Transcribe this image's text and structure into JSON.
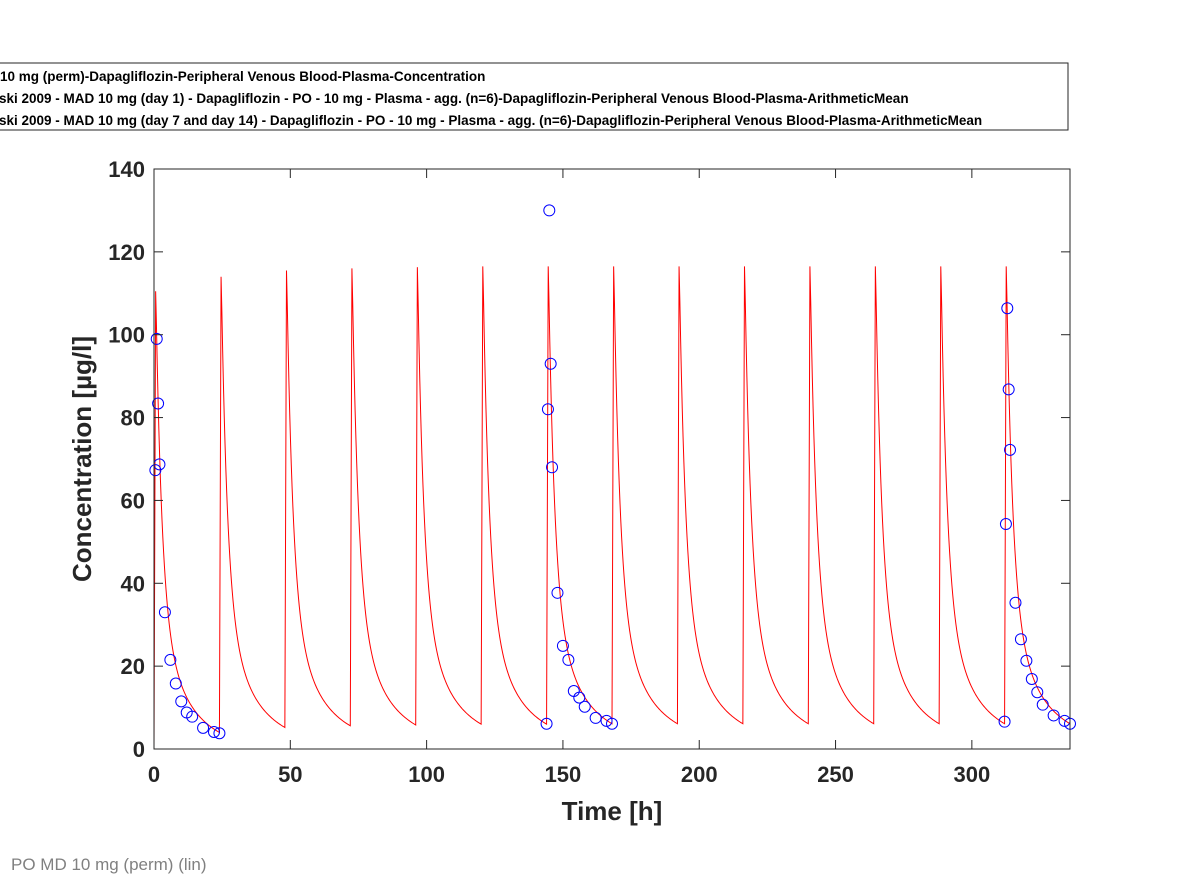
{
  "chart_data": {
    "type": "line",
    "xlabel": "Time [h]",
    "ylabel": "Concentration [µg/l]",
    "xlim": [
      0,
      336
    ],
    "ylim": [
      0,
      140
    ],
    "xticks": [
      0,
      50,
      100,
      150,
      200,
      250,
      300
    ],
    "yticks": [
      0,
      20,
      40,
      60,
      80,
      100,
      120,
      140
    ],
    "grid": false,
    "legend_position": "top",
    "footer": "PO MD 10 mg (perm) (lin)",
    "series": [
      {
        "name": "10 mg (perm)-Dapagliflozin-Peripheral Venous Blood-Plasma-Concentration",
        "kind": "line",
        "color": "#ff0000",
        "dose_times": [
          0,
          24,
          48,
          72,
          96,
          120,
          144,
          168,
          192,
          216,
          240,
          264,
          288,
          312
        ],
        "peaks": [
          110.5,
          114,
          115.5,
          116,
          116.3,
          116.5,
          116.5,
          116.5,
          116.5,
          116.5,
          116.5,
          116.5,
          116.5,
          116.5
        ],
        "troughs_before_next_dose": [
          4,
          5.2,
          5.6,
          5.8,
          6.0,
          6.0,
          6.1,
          6.1,
          6.1,
          6.1,
          6.1,
          6.1,
          6.1,
          6.1
        ]
      },
      {
        "name": "ski 2009 - MAD 10 mg (day 1) - Dapagliflozin - PO - 10 mg - Plasma - agg. (n=6)-Dapagliflozin-Peripheral Venous Blood-Plasma-ArithmeticMean",
        "kind": "markers",
        "color": "#0000ff",
        "x": [
          0.5,
          1,
          1.5,
          2,
          4,
          6,
          8,
          10,
          12,
          14,
          18,
          22,
          24
        ],
        "y": [
          67.3,
          99,
          83.4,
          68.7,
          33,
          21.5,
          15.8,
          11.5,
          8.8,
          7.8,
          5.1,
          4.1,
          3.8
        ]
      },
      {
        "name": "ski 2009 - MAD 10 mg (day 7 and day 14) - Dapagliflozin - PO - 10 mg - Plasma - agg. (n=6)-Dapagliflozin-Peripheral Venous Blood-Plasma-ArithmeticMean",
        "kind": "markers",
        "color": "#0000ff",
        "x": [
          144,
          144.5,
          145,
          145.5,
          146,
          148,
          150,
          152,
          154,
          156,
          158,
          162,
          166,
          168,
          312,
          312.5,
          313,
          313.5,
          314,
          316,
          318,
          320,
          322,
          324,
          326,
          330,
          334,
          336
        ],
        "y": [
          6.1,
          82,
          130,
          93,
          68,
          37.7,
          24.9,
          21.5,
          14,
          12.4,
          10.2,
          7.5,
          6.8,
          6.1,
          6.6,
          54.3,
          106.4,
          86.8,
          72.2,
          35.3,
          26.5,
          21.3,
          16.9,
          13.7,
          10.7,
          8.1,
          6.8,
          6.1
        ]
      }
    ]
  }
}
